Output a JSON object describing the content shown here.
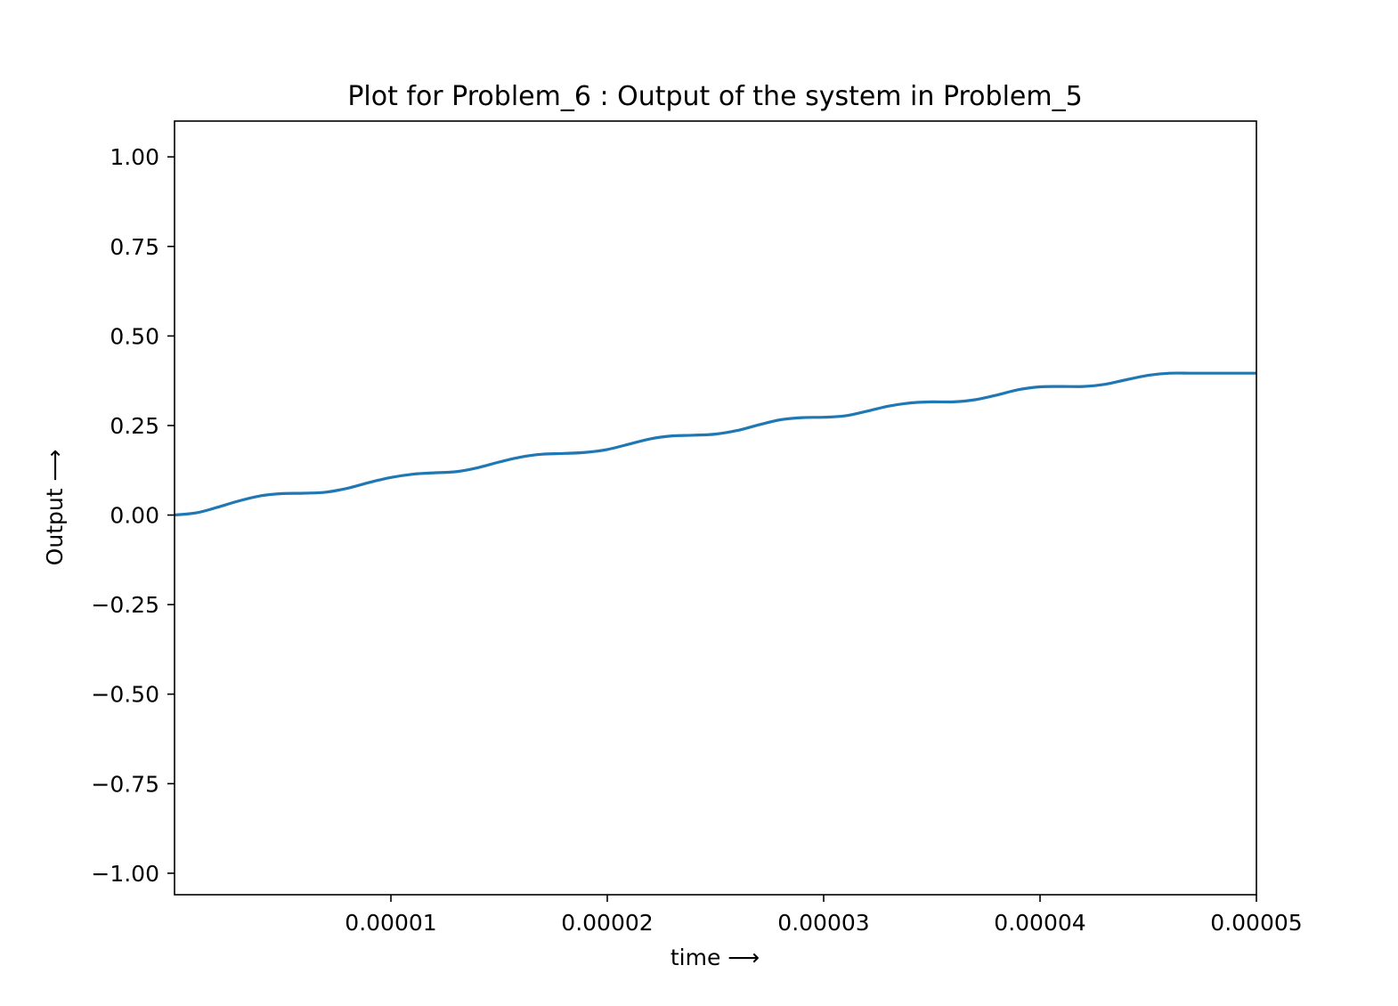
{
  "chart_data": {
    "type": "line",
    "title": "Plot for Problem_6 : Output of the system in Problem_5",
    "xlabel": "time ⟶",
    "ylabel": "Output ⟶",
    "xlim": [
      0.0,
      5e-05
    ],
    "ylim": [
      -1.06,
      1.1
    ],
    "xticks": [
      {
        "value": 1e-05,
        "label": "0.00001"
      },
      {
        "value": 2e-05,
        "label": "0.00002"
      },
      {
        "value": 3e-05,
        "label": "0.00003"
      },
      {
        "value": 4e-05,
        "label": "0.00004"
      },
      {
        "value": 5e-05,
        "label": "0.00005"
      }
    ],
    "yticks": [
      {
        "value": 1.0,
        "label": "1.00"
      },
      {
        "value": 0.75,
        "label": "0.75"
      },
      {
        "value": 0.5,
        "label": "0.50"
      },
      {
        "value": 0.25,
        "label": "0.25"
      },
      {
        "value": 0.0,
        "label": "0.00"
      },
      {
        "value": -0.25,
        "label": "−0.25"
      },
      {
        "value": -0.5,
        "label": "−0.50"
      },
      {
        "value": -0.75,
        "label": "−0.75"
      },
      {
        "value": -1.0,
        "label": "−1.00"
      }
    ],
    "grid": false,
    "series": [
      {
        "color": "#1f77b4",
        "x": [
          0,
          1e-06,
          2e-06,
          3e-06,
          4e-06,
          5e-06,
          6e-06,
          7e-06,
          8e-06,
          9e-06,
          1e-05,
          1.1e-05,
          1.2e-05,
          1.3e-05,
          1.4e-05,
          1.5e-05,
          1.6e-05,
          1.7e-05,
          1.8e-05,
          1.9e-05,
          2e-05,
          2.1e-05,
          2.2e-05,
          2.3e-05,
          2.4e-05,
          2.5e-05,
          2.6e-05,
          2.7e-05,
          2.8e-05,
          2.9e-05,
          3e-05,
          3.1e-05,
          3.2e-05,
          3.3e-05,
          3.4e-05,
          3.5e-05,
          3.6e-05,
          3.7e-05,
          3.8e-05,
          3.9e-05,
          4e-05,
          4.1e-05,
          4.2e-05,
          4.3e-05,
          4.4e-05,
          4.5e-05,
          4.6e-05,
          4.7e-05,
          4.8e-05,
          4.9e-05,
          5e-05
        ],
        "y": [
          0.0,
          0.006,
          0.022,
          0.04,
          0.054,
          0.06,
          0.061,
          0.064,
          0.075,
          0.091,
          0.105,
          0.114,
          0.118,
          0.121,
          0.132,
          0.148,
          0.162,
          0.17,
          0.172,
          0.175,
          0.183,
          0.198,
          0.213,
          0.221,
          0.223,
          0.226,
          0.236,
          0.252,
          0.266,
          0.272,
          0.273,
          0.277,
          0.29,
          0.304,
          0.313,
          0.316,
          0.316,
          0.322,
          0.335,
          0.35,
          0.358,
          0.359,
          0.359,
          0.365,
          0.378,
          0.39,
          0.396,
          0.396,
          0.396,
          0.396,
          0.396
        ]
      }
    ]
  }
}
